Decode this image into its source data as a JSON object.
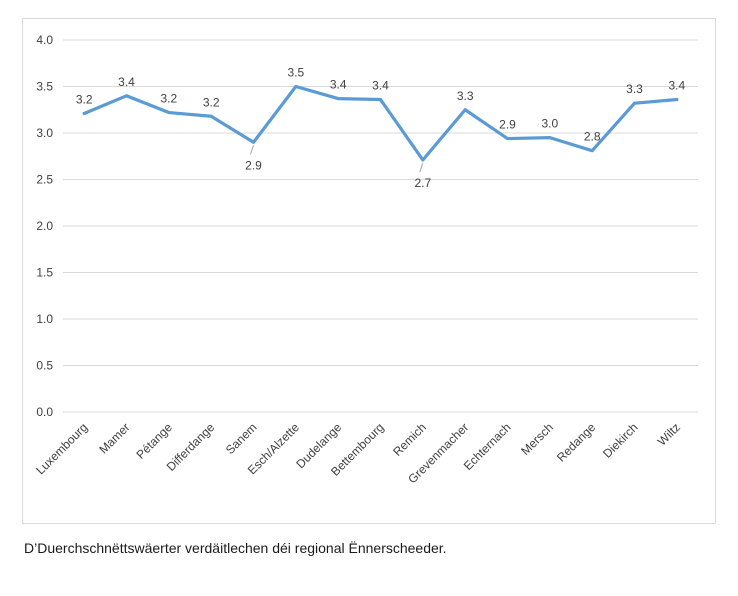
{
  "caption": "D’Duerchschnëttswäerter verdäitlechen déi regional Ënnerscheeder.",
  "colors": {
    "line": "#5b9bd5",
    "grid": "#d9d9d9",
    "text": "#404040",
    "leader": "#a6a6a6"
  },
  "chart_data": {
    "type": "line",
    "title": "",
    "xlabel": "",
    "ylabel": "",
    "ylim": [
      0,
      4
    ],
    "yticks": [
      "0.0",
      "0.5",
      "1.0",
      "1.5",
      "2.0",
      "2.5",
      "3.0",
      "3.5",
      "4.0"
    ],
    "grid": true,
    "legend": "none",
    "categories": [
      "Luxembourg",
      "Mamer",
      "Pétange",
      "Differdange",
      "Sanem",
      "Esch/Alzette",
      "Dudelange",
      "Bettembourg",
      "Remich",
      "Grevenmacher",
      "Echternach",
      "Mersch",
      "Redange",
      "Diekirch",
      "Wiltz"
    ],
    "series": [
      {
        "values": [
          3.21,
          3.4,
          3.22,
          3.18,
          2.9,
          3.5,
          3.37,
          3.36,
          2.71,
          3.25,
          2.94,
          2.95,
          2.81,
          3.32,
          3.36
        ],
        "labels": [
          "3.2",
          "3.4",
          "3.2",
          "3.2",
          "2.9",
          "3.5",
          "3.4",
          "3.4",
          "2.7",
          "3.3",
          "2.9",
          "3.0",
          "2.8",
          "3.3",
          "3.4"
        ],
        "label_position": [
          "above",
          "above",
          "above",
          "above",
          "below",
          "above",
          "above",
          "above",
          "below",
          "above",
          "above",
          "above",
          "above",
          "above",
          "above"
        ]
      }
    ]
  }
}
